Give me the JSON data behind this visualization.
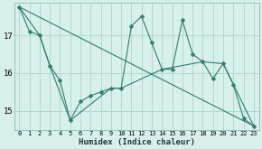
{
  "xlabel": "Humidex (Indice chaleur)",
  "bg_color": "#d8f0ec",
  "line_color": "#2e7d6e",
  "grid_color": "#b0d8d0",
  "xlim": [
    -0.5,
    23.5
  ],
  "ylim": [
    14.5,
    17.85
  ],
  "yticks": [
    15,
    16,
    17
  ],
  "xticks": [
    0,
    1,
    2,
    3,
    4,
    5,
    6,
    7,
    8,
    9,
    10,
    11,
    12,
    13,
    14,
    15,
    16,
    17,
    18,
    19,
    20,
    21,
    22,
    23
  ],
  "series_main": [
    [
      0,
      17.75
    ],
    [
      1,
      17.1
    ],
    [
      2,
      17.0
    ],
    [
      3,
      16.2
    ],
    [
      4,
      15.8
    ],
    [
      5,
      14.75
    ],
    [
      6,
      15.25
    ],
    [
      7,
      15.4
    ],
    [
      8,
      15.5
    ],
    [
      9,
      15.6
    ],
    [
      10,
      15.6
    ],
    [
      11,
      17.25
    ],
    [
      12,
      17.5
    ],
    [
      13,
      16.8
    ],
    [
      14,
      16.1
    ],
    [
      15,
      16.1
    ],
    [
      16,
      17.4
    ],
    [
      17,
      16.5
    ],
    [
      18,
      16.3
    ],
    [
      19,
      15.85
    ],
    [
      20,
      16.25
    ],
    [
      21,
      15.7
    ],
    [
      22,
      14.8
    ],
    [
      23,
      14.6
    ]
  ],
  "series_smooth": [
    [
      0,
      17.75
    ],
    [
      2,
      17.0
    ],
    [
      3,
      16.2
    ],
    [
      5,
      14.75
    ],
    [
      9,
      15.6
    ],
    [
      10,
      15.6
    ],
    [
      14,
      16.1
    ],
    [
      18,
      16.3
    ],
    [
      20,
      16.25
    ],
    [
      23,
      14.6
    ]
  ],
  "series_trend": [
    [
      0,
      17.75
    ],
    [
      23,
      14.6
    ]
  ]
}
